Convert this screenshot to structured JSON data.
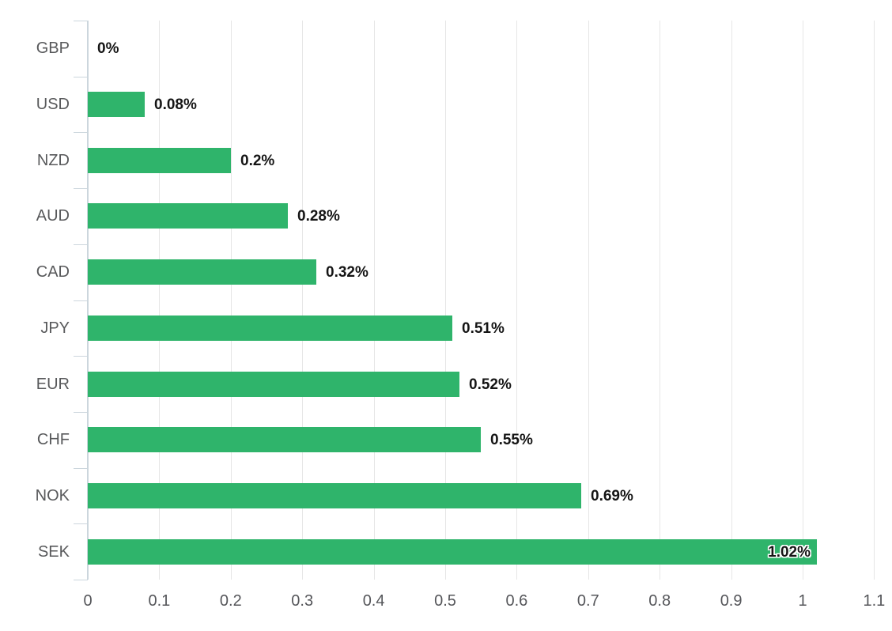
{
  "chart_data": {
    "type": "bar",
    "orientation": "horizontal",
    "title": "",
    "xlabel": "",
    "ylabel": "",
    "categories": [
      "GBP",
      "USD",
      "NZD",
      "AUD",
      "CAD",
      "JPY",
      "EUR",
      "CHF",
      "NOK",
      "SEK"
    ],
    "values": [
      0,
      0.08,
      0.2,
      0.28,
      0.32,
      0.51,
      0.52,
      0.55,
      0.69,
      1.02
    ],
    "data_labels": [
      "0%",
      "0.08%",
      "0.2%",
      "0.28%",
      "0.32%",
      "0.51%",
      "0.52%",
      "0.55%",
      "0.69%",
      "1.02%"
    ],
    "xlim": [
      0,
      1.1
    ],
    "x_ticks": [
      "0",
      "0.1",
      "0.2",
      "0.3",
      "0.4",
      "0.5",
      "0.6",
      "0.7",
      "0.8",
      "0.9",
      "1",
      "1.1"
    ],
    "x_tick_values": [
      0,
      0.1,
      0.2,
      0.3,
      0.4,
      0.5,
      0.6,
      0.7,
      0.8,
      0.9,
      1,
      1.1
    ],
    "grid": true,
    "legend": "none",
    "colors": {
      "bar": "#2fb46b",
      "category_label": "#58595b",
      "value_label": "#151515",
      "axis_line": "#ccd6dd",
      "gridline": "#e6e6e6",
      "tick_label": "#55565a",
      "inside_label_outline": "#ffffff"
    },
    "last_label_inside": true
  }
}
